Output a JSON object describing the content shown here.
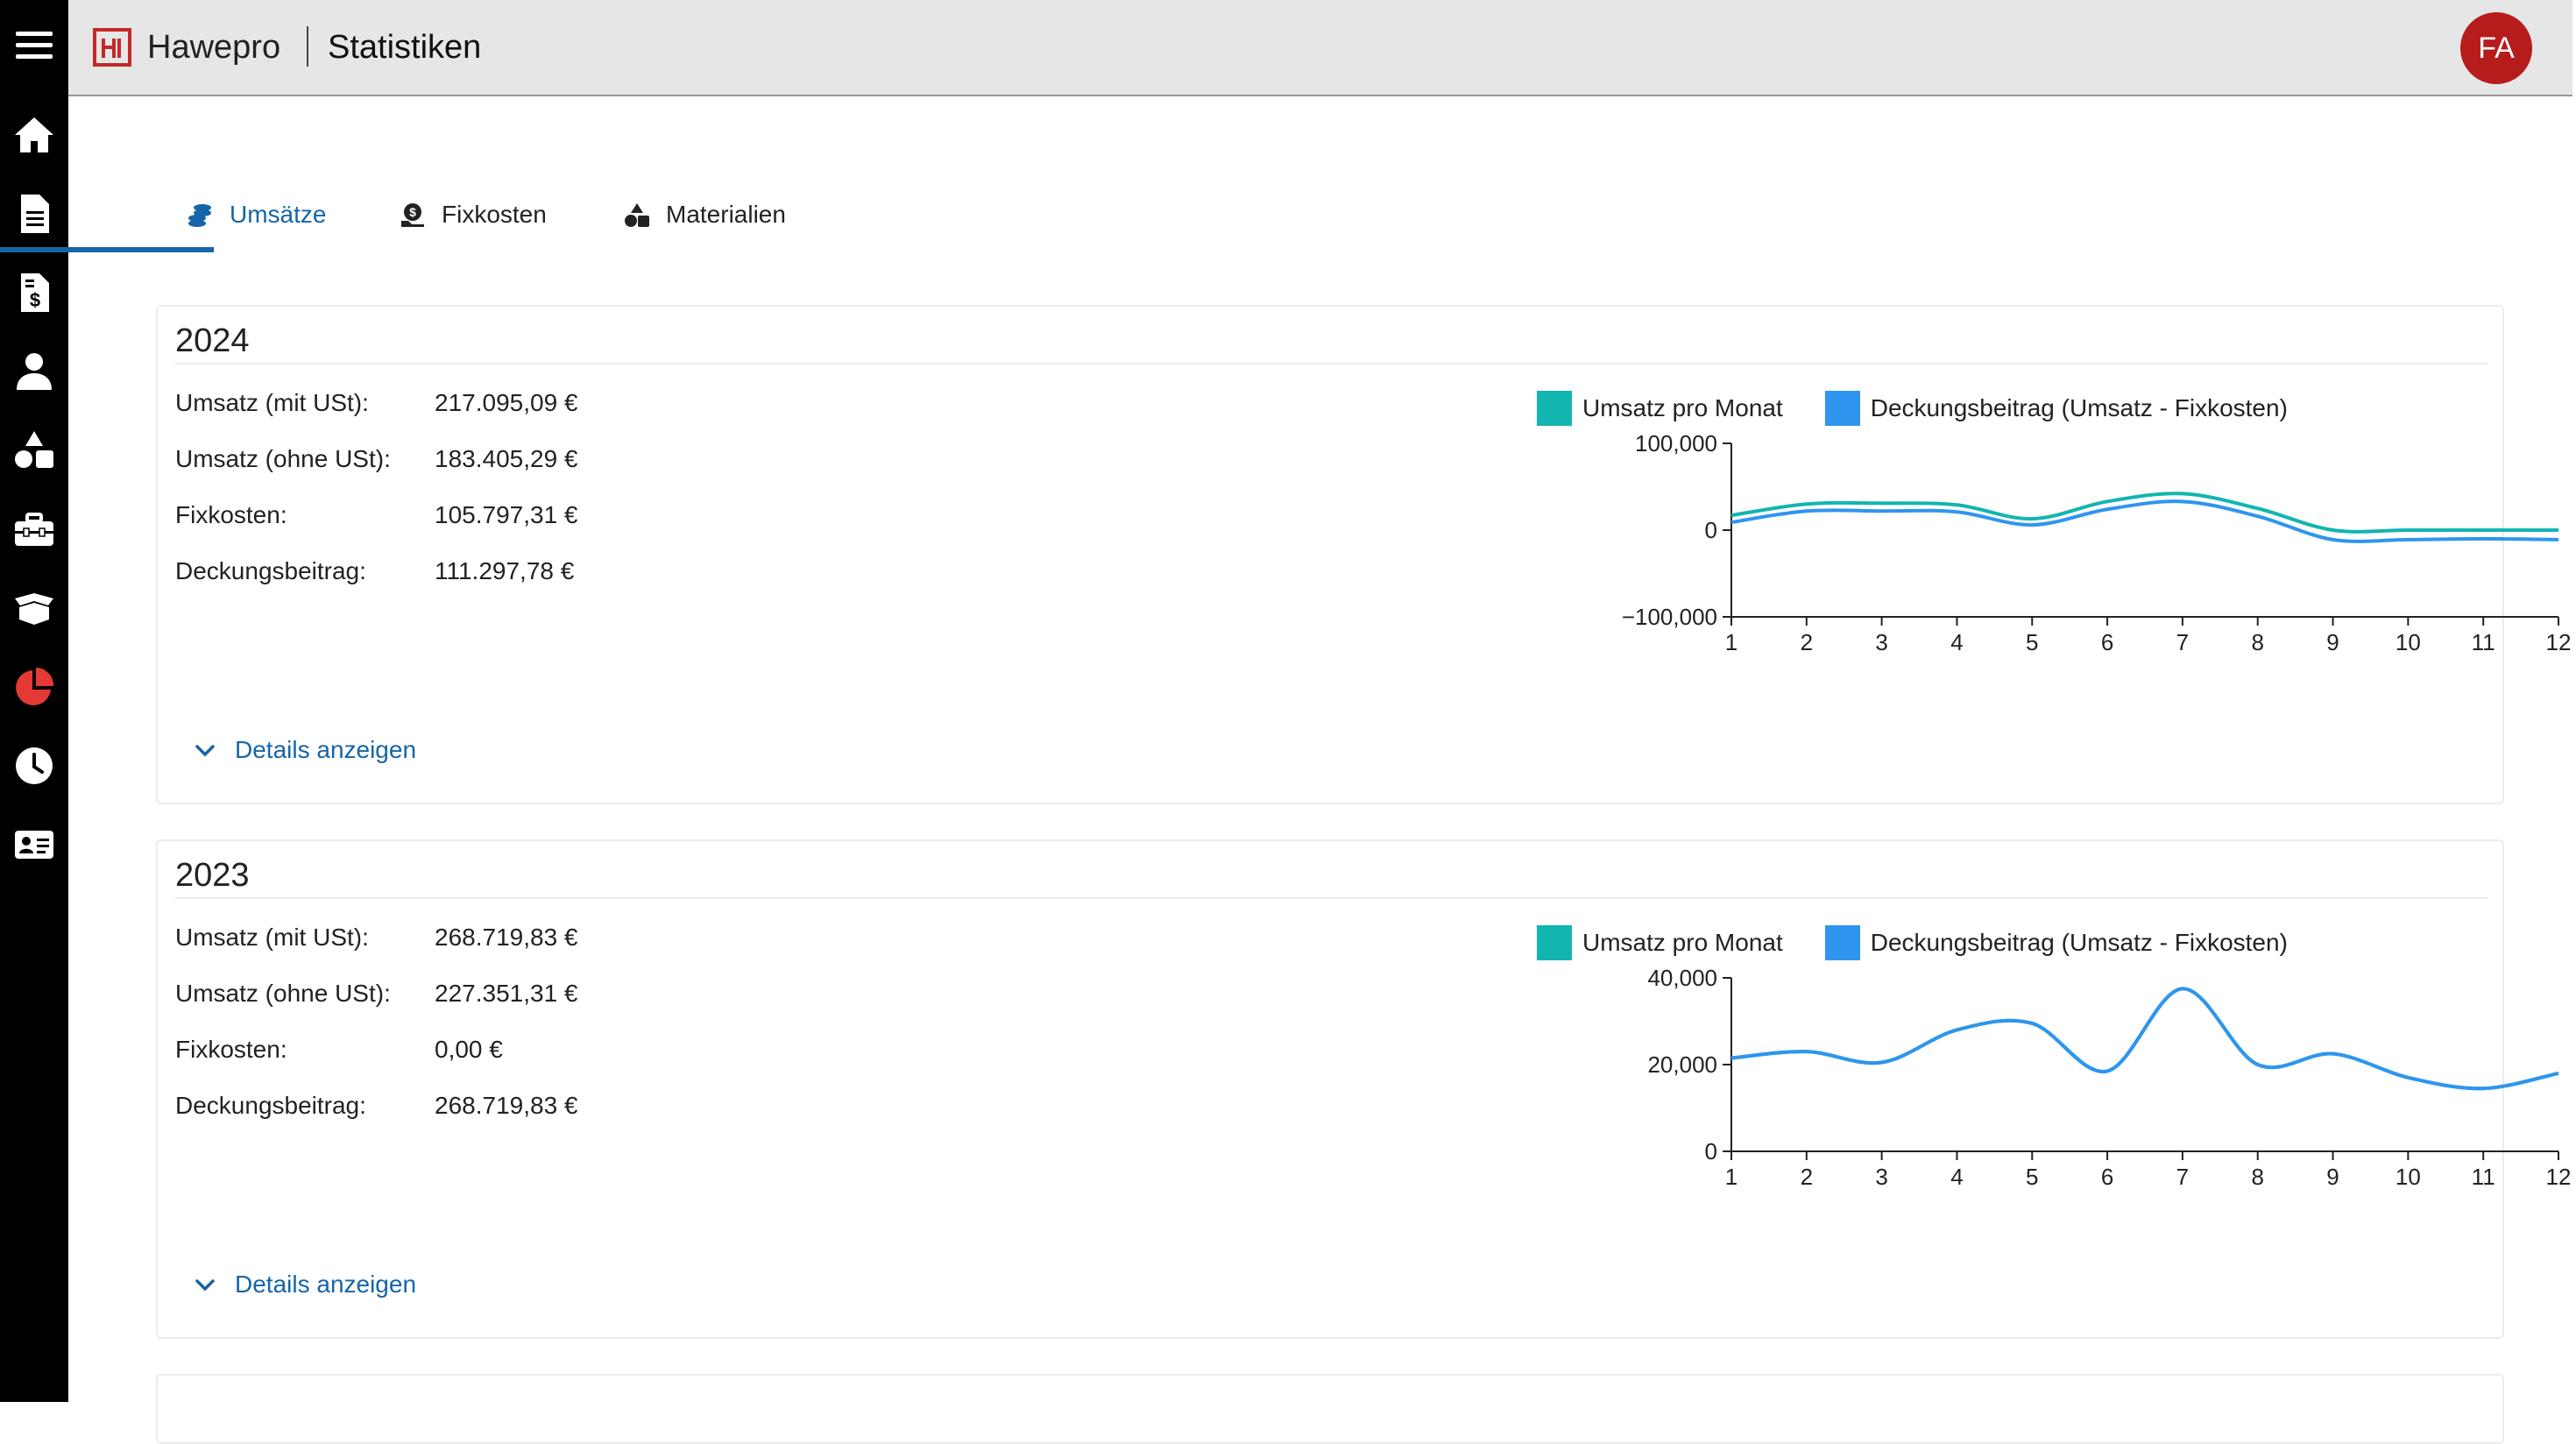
{
  "app": {
    "brand": "Hawepro",
    "title": "Statistiken",
    "user_initials": "FA"
  },
  "colors": {
    "accent": "#1565a8",
    "brand_red": "#c62828",
    "series_revenue": "#12b5b0",
    "series_margin": "#2f95ee"
  },
  "sidebar": [
    {
      "icon": "menu-icon"
    },
    {
      "icon": "home-icon"
    },
    {
      "icon": "document-icon"
    },
    {
      "icon": "invoice-icon"
    },
    {
      "icon": "user-icon"
    },
    {
      "icon": "materials-icon"
    },
    {
      "icon": "toolbox-icon"
    },
    {
      "icon": "box-icon"
    },
    {
      "icon": "pie-chart-icon"
    },
    {
      "icon": "clock-icon"
    },
    {
      "icon": "contact-card-icon"
    }
  ],
  "tabs": [
    {
      "label": "Umsätze",
      "icon": "coins-icon",
      "active": true
    },
    {
      "label": "Fixkosten",
      "icon": "cost-icon",
      "active": false
    },
    {
      "label": "Materialien",
      "icon": "shapes-icon",
      "active": false
    }
  ],
  "labels": {
    "revenue_gross": "Umsatz (mit USt):",
    "revenue_net": "Umsatz (ohne USt):",
    "fixed_costs": "Fixkosten:",
    "margin": "Deckungsbeitrag:",
    "details": "Details anzeigen"
  },
  "legend": {
    "revenue": "Umsatz pro Monat",
    "margin": "Deckungsbeitrag (Umsatz - Fixkosten)"
  },
  "cards": [
    {
      "year": "2024",
      "revenue_gross": "217.095,09 €",
      "revenue_net": "183.405,29 €",
      "fixed_costs": "105.797,31 €",
      "margin": "111.297,78 €"
    },
    {
      "year": "2023",
      "revenue_gross": "268.719,83 €",
      "revenue_net": "227.351,31 €",
      "fixed_costs": "0,00 €",
      "margin": "268.719,83 €"
    }
  ],
  "chart_data": [
    {
      "type": "line",
      "x": [
        1,
        2,
        3,
        4,
        5,
        6,
        7,
        8,
        9,
        10,
        11,
        12
      ],
      "ylim": [
        -100000,
        100000
      ],
      "yticks": [
        "100,000",
        "0",
        "−100,000"
      ],
      "ytick_values": [
        100000,
        0,
        -100000
      ],
      "legend_position": "top",
      "series": [
        {
          "name": "Umsatz pro Monat",
          "color": "#12b5b0",
          "values": [
            17000,
            30000,
            31000,
            29000,
            13000,
            33000,
            42000,
            25000,
            0,
            0,
            0,
            0
          ]
        },
        {
          "name": "Deckungsbeitrag (Umsatz - Fixkosten)",
          "color": "#2f95ee",
          "values": [
            9000,
            22000,
            22000,
            21000,
            6000,
            24000,
            33000,
            16000,
            -11000,
            -11000,
            -10000,
            -11000
          ]
        }
      ]
    },
    {
      "type": "line",
      "x": [
        1,
        2,
        3,
        4,
        5,
        6,
        7,
        8,
        9,
        10,
        11,
        12
      ],
      "ylim": [
        0,
        40000
      ],
      "yticks": [
        "40,000",
        "20,000",
        "0"
      ],
      "ytick_values": [
        40000,
        20000,
        0
      ],
      "legend_position": "top",
      "series": [
        {
          "name": "Umsatz pro Monat",
          "color": "#12b5b0",
          "values": [
            21500,
            23000,
            20500,
            28000,
            29500,
            18500,
            37500,
            20000,
            22500,
            17000,
            14500,
            18000
          ]
        },
        {
          "name": "Deckungsbeitrag (Umsatz - Fixkosten)",
          "color": "#2f95ee",
          "values": [
            21500,
            23000,
            20500,
            28000,
            29500,
            18500,
            37500,
            20000,
            22500,
            17000,
            14500,
            18000
          ]
        }
      ]
    }
  ]
}
